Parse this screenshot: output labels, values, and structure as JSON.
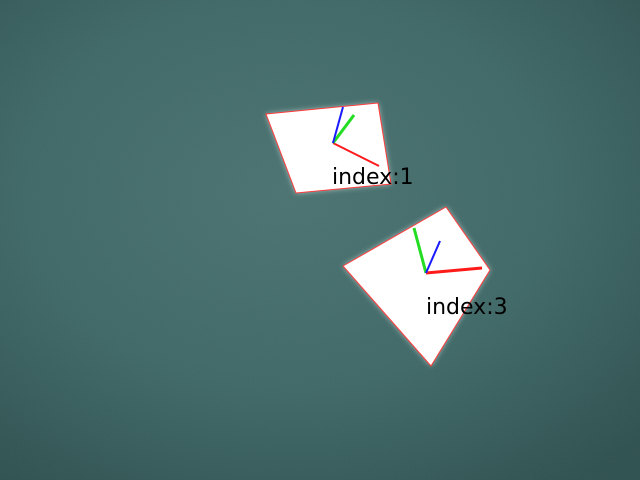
{
  "scene": {
    "description_free": true,
    "background_color": "#3e6664",
    "marker_fill": "#ffffff",
    "outline_color": "#ff3b3b",
    "axis_colors": {
      "x": "#ff1a1a",
      "y": "#22dd22",
      "z": "#1a1aff"
    }
  },
  "markers": [
    {
      "label": "index:1"
    },
    {
      "label": "index:3"
    }
  ]
}
